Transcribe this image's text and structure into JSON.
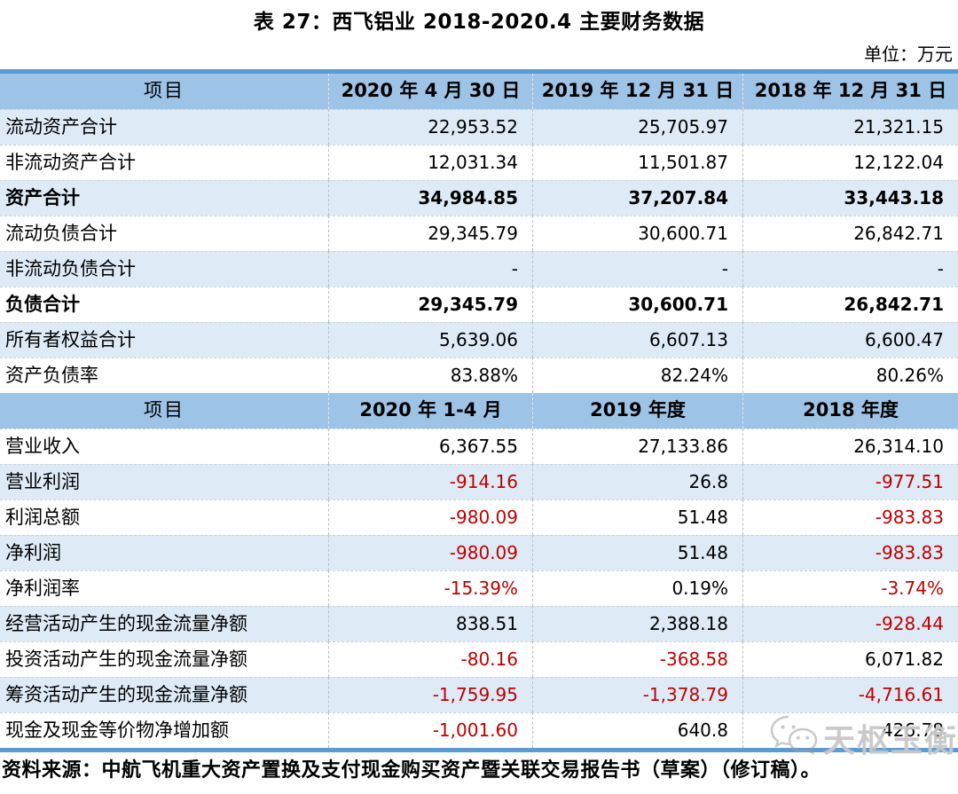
{
  "page": {
    "title": "表 27：西飞铝业 2018-2020.4 主要财务数据",
    "unit_label": "单位：万元",
    "source": "资料来源：中航飞机重大资产置换及支付现金购买资产暨关联交易报告书（草案）（修订稿）。"
  },
  "watermark": {
    "icon": "wechat-logo-icon",
    "text": "天枢玉衡"
  },
  "colors": {
    "header_bg": "#9DC3E6",
    "stripe_bg": "#DEEBF7",
    "border_accent": "#5B9BD5",
    "negative_text": "#C00000",
    "body_text": "#000000"
  },
  "table": {
    "sections": [
      {
        "name": "balance-sheet",
        "header": [
          "项目",
          "2020 年 4 月 30 日",
          "2019 年 12 月 31 日",
          "2018 年 12 月 31 日"
        ],
        "first_row_shaded": true,
        "rows": [
          {
            "label": "流动资产合计",
            "values": [
              "22,953.52",
              "25,705.97",
              "21,321.15"
            ],
            "bold": false,
            "red": [
              false,
              false,
              false
            ]
          },
          {
            "label": "非流动资产合计",
            "values": [
              "12,031.34",
              "11,501.87",
              "12,122.04"
            ],
            "bold": false,
            "red": [
              false,
              false,
              false
            ]
          },
          {
            "label": "资产合计",
            "values": [
              "34,984.85",
              "37,207.84",
              "33,443.18"
            ],
            "bold": true,
            "red": [
              false,
              false,
              false
            ]
          },
          {
            "label": "流动负债合计",
            "values": [
              "29,345.79",
              "30,600.71",
              "26,842.71"
            ],
            "bold": false,
            "red": [
              false,
              false,
              false
            ]
          },
          {
            "label": "非流动负债合计",
            "values": [
              "-",
              "-",
              "-"
            ],
            "bold": false,
            "red": [
              false,
              false,
              false
            ]
          },
          {
            "label": "负债合计",
            "values": [
              "29,345.79",
              "30,600.71",
              "26,842.71"
            ],
            "bold": true,
            "red": [
              false,
              false,
              false
            ]
          },
          {
            "label": "所有者权益合计",
            "values": [
              "5,639.06",
              "6,607.13",
              "6,600.47"
            ],
            "bold": false,
            "red": [
              false,
              false,
              false
            ]
          },
          {
            "label": "资产负债率",
            "values": [
              "83.88%",
              "82.24%",
              "80.26%"
            ],
            "bold": false,
            "red": [
              false,
              false,
              false
            ]
          }
        ]
      },
      {
        "name": "income-cashflow",
        "header": [
          "项目",
          "2020 年 1-4 月",
          "2019 年度",
          "2018 年度"
        ],
        "first_row_shaded": false,
        "rows": [
          {
            "label": "营业收入",
            "values": [
              "6,367.55",
              "27,133.86",
              "26,314.10"
            ],
            "bold": false,
            "red": [
              false,
              false,
              false
            ]
          },
          {
            "label": "营业利润",
            "values": [
              "-914.16",
              "26.8",
              "-977.51"
            ],
            "bold": false,
            "red": [
              true,
              false,
              true
            ]
          },
          {
            "label": "利润总额",
            "values": [
              "-980.09",
              "51.48",
              "-983.83"
            ],
            "bold": false,
            "red": [
              true,
              false,
              true
            ]
          },
          {
            "label": "净利润",
            "values": [
              "-980.09",
              "51.48",
              "-983.83"
            ],
            "bold": false,
            "red": [
              true,
              false,
              true
            ]
          },
          {
            "label": "净利润率",
            "values": [
              "-15.39%",
              "0.19%",
              "-3.74%"
            ],
            "bold": false,
            "red": [
              true,
              false,
              true
            ]
          },
          {
            "label": "经营活动产生的现金流量净额",
            "values": [
              "838.51",
              "2,388.18",
              "-928.44"
            ],
            "bold": false,
            "red": [
              false,
              false,
              true
            ]
          },
          {
            "label": "投资活动产生的现金流量净额",
            "values": [
              "-80.16",
              "-368.58",
              "6,071.82"
            ],
            "bold": false,
            "red": [
              true,
              true,
              false
            ]
          },
          {
            "label": "筹资活动产生的现金流量净额",
            "values": [
              "-1,759.95",
              "-1,378.79",
              "-4,716.61"
            ],
            "bold": false,
            "red": [
              true,
              true,
              true
            ]
          },
          {
            "label": "现金及现金等价物净增加额",
            "values": [
              "-1,001.60",
              "640.8",
              "426.78"
            ],
            "bold": false,
            "red": [
              true,
              false,
              false
            ]
          }
        ]
      }
    ]
  }
}
